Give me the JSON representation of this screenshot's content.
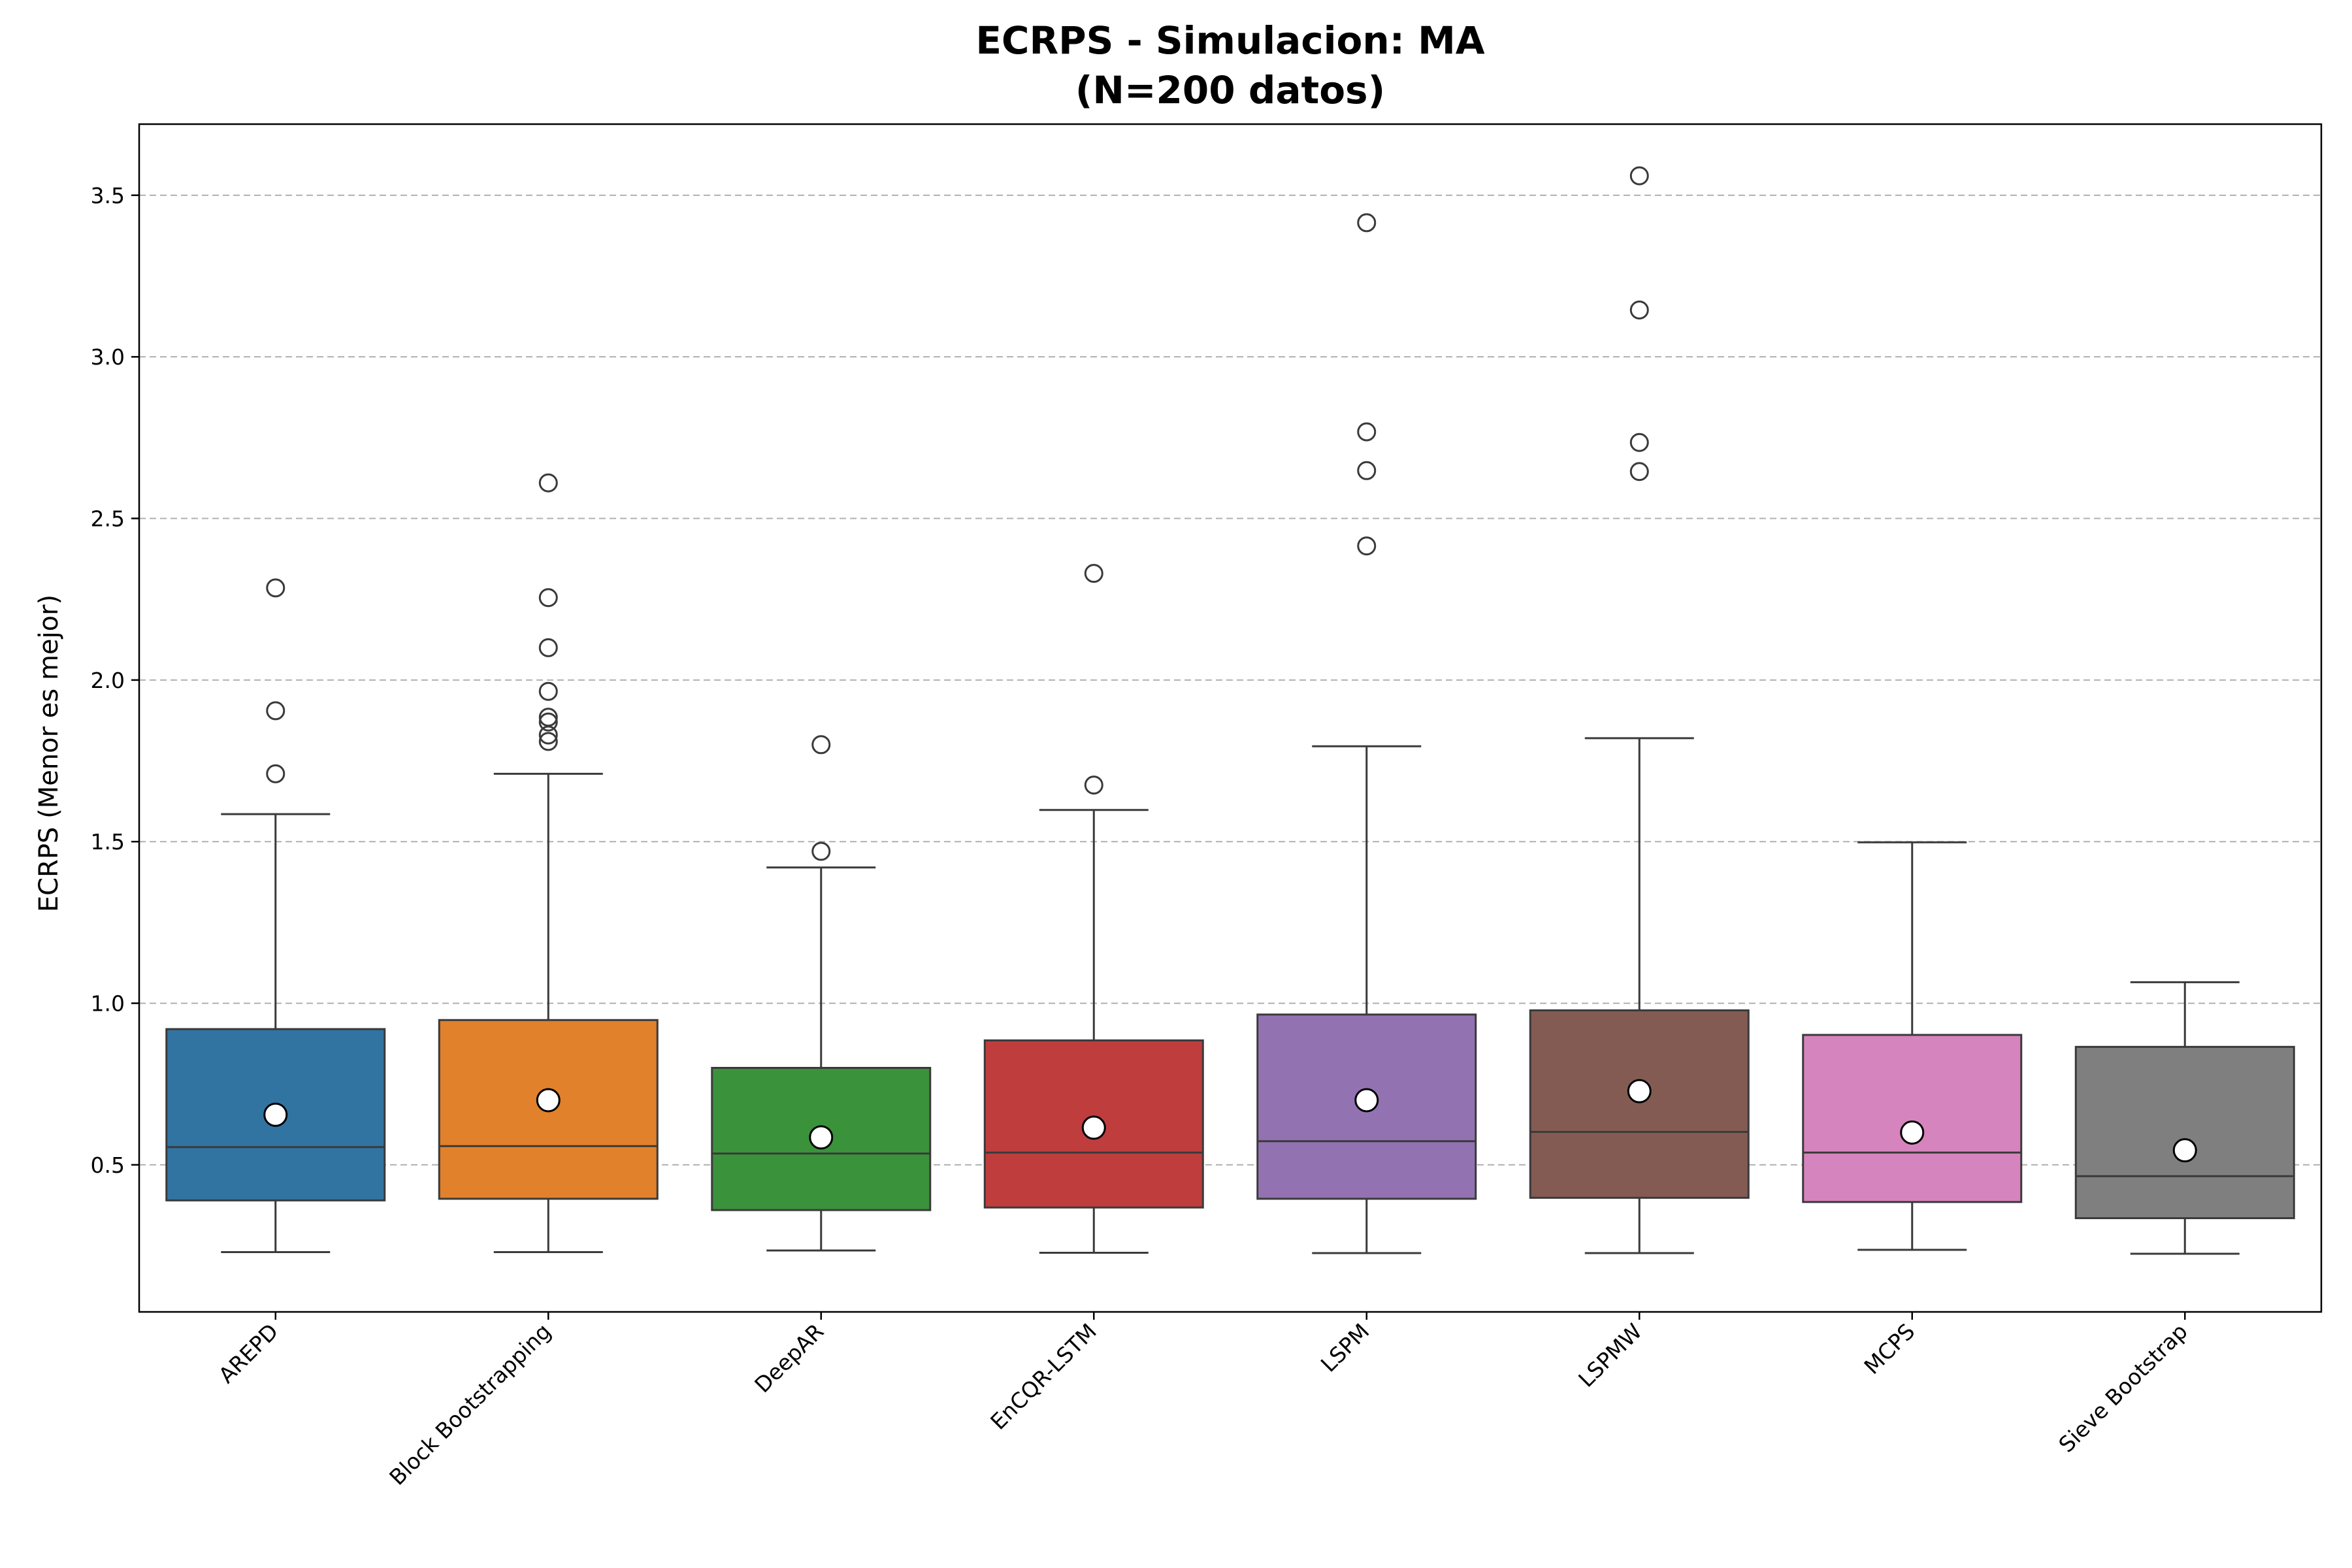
{
  "chart_data": {
    "type": "box",
    "title": "ECRPS - Simulacion: MA",
    "subtitle": "(N=200 datos)",
    "xlabel": "",
    "ylabel": "ECRPS (Menor es mejor)",
    "ylim": [
      0.045,
      3.72
    ],
    "yticks": [
      0.5,
      1.0,
      1.5,
      2.0,
      2.5,
      3.0,
      3.5
    ],
    "ytick_labels": [
      "0.5",
      "1.0",
      "1.5",
      "2.0",
      "2.5",
      "3.0",
      "3.5"
    ],
    "grid": "y-dashed",
    "legend": "none",
    "categories": [
      "AREPD",
      "Block Bootstrapping",
      "DeepAR",
      "EnCQR-LSTM",
      "LSPM",
      "LSPMW",
      "MCPS",
      "Sieve Bootstrap"
    ],
    "series": [
      {
        "category": "AREPD",
        "color": "#3274a1",
        "whislo": 0.23,
        "q1": 0.39,
        "median": 0.555,
        "q3": 0.92,
        "whishi": 1.585,
        "mean": 0.655,
        "fliers": [
          1.71,
          1.905,
          2.285
        ]
      },
      {
        "category": "Block Bootstrapping",
        "color": "#e1812c",
        "whislo": 0.23,
        "q1": 0.395,
        "median": 0.558,
        "q3": 0.948,
        "whishi": 1.71,
        "mean": 0.7,
        "fliers": [
          1.81,
          1.83,
          1.87,
          1.885,
          1.965,
          2.1,
          2.255,
          2.61
        ]
      },
      {
        "category": "DeepAR",
        "color": "#3a923a",
        "whislo": 0.235,
        "q1": 0.36,
        "median": 0.535,
        "q3": 0.8,
        "whishi": 1.42,
        "mean": 0.585,
        "fliers": [
          1.47,
          1.8
        ]
      },
      {
        "category": "EnCQR-LSTM",
        "color": "#c03d3e",
        "whislo": 0.228,
        "q1": 0.368,
        "median": 0.538,
        "q3": 0.885,
        "whishi": 1.598,
        "mean": 0.615,
        "fliers": [
          1.675,
          2.33
        ]
      },
      {
        "category": "LSPM",
        "color": "#9372b2",
        "whislo": 0.227,
        "q1": 0.395,
        "median": 0.573,
        "q3": 0.965,
        "whishi": 1.795,
        "mean": 0.7,
        "fliers": [
          2.415,
          2.648,
          2.768,
          3.415
        ]
      },
      {
        "category": "LSPMW",
        "color": "#845b53",
        "whislo": 0.227,
        "q1": 0.398,
        "median": 0.602,
        "q3": 0.978,
        "whishi": 1.82,
        "mean": 0.728,
        "fliers": [
          2.645,
          2.735,
          3.145,
          3.56
        ]
      },
      {
        "category": "MCPS",
        "color": "#d684bd",
        "whislo": 0.237,
        "q1": 0.385,
        "median": 0.538,
        "q3": 0.902,
        "whishi": 1.498,
        "mean": 0.6,
        "fliers": []
      },
      {
        "category": "Sieve Bootstrap",
        "color": "#7f7f7f",
        "whislo": 0.225,
        "q1": 0.335,
        "median": 0.465,
        "q3": 0.865,
        "whishi": 1.065,
        "mean": 0.545,
        "fliers": []
      }
    ]
  }
}
